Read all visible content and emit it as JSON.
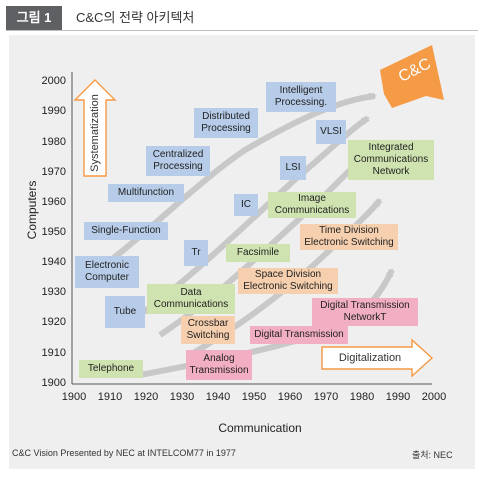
{
  "figure": {
    "badge": "그림 1",
    "title": "C&C의 전략 아키텍처",
    "caption": "C&C Vision Presented by NEC at INTELCOM77 in 1977",
    "source": "출처: NEC"
  },
  "axes": {
    "y_label": "Computers",
    "x_label": "Communication",
    "y_ticks": [
      "2000",
      "1990",
      "1980",
      "1970",
      "1960",
      "1950",
      "1940",
      "1930",
      "1920",
      "1910",
      "1900"
    ],
    "x_ticks": [
      "1900",
      "1910",
      "1920",
      "1930",
      "1940",
      "1950",
      "1960",
      "1970",
      "1980",
      "1990",
      "2000"
    ]
  },
  "arrows": {
    "systematization": "Systematization",
    "digitalization": "Digitalization",
    "target": "C&C"
  },
  "computers": {
    "electronic": "Electronic Computer",
    "single": "Single-Function",
    "multi": "Multifunction",
    "centralized": "Centralized Processing",
    "distributed": "Distributed Processing",
    "intelligent": "Intelligent Processing."
  },
  "devices": {
    "tube": "Tube",
    "tr": "Tr",
    "ic": "IC",
    "lsi": "LSI",
    "vlsi": "VLSI"
  },
  "communications": {
    "data": "Data Communications",
    "facsimile": "Facsimile",
    "image": "Image Communications",
    "integrated": "Integrated Communications Network",
    "crossbar": "Crossbar Switching",
    "space": "Space Division Electronic Switching",
    "time": "Time Division Electronic Switching",
    "telephone": "Telephone",
    "analog": "Analog Transmission",
    "digital": "Digital Transmission",
    "digital_network": "Digital Transmission NetworkT"
  },
  "colors": {
    "computer_box": "#b6cce8",
    "comm_box": "#cfe3b1",
    "switching_box": "#f6cfae",
    "transmission_box": "#f2afc3",
    "target_arrow": "#f59a45",
    "flow_arrow": "#c8c8c8"
  }
}
